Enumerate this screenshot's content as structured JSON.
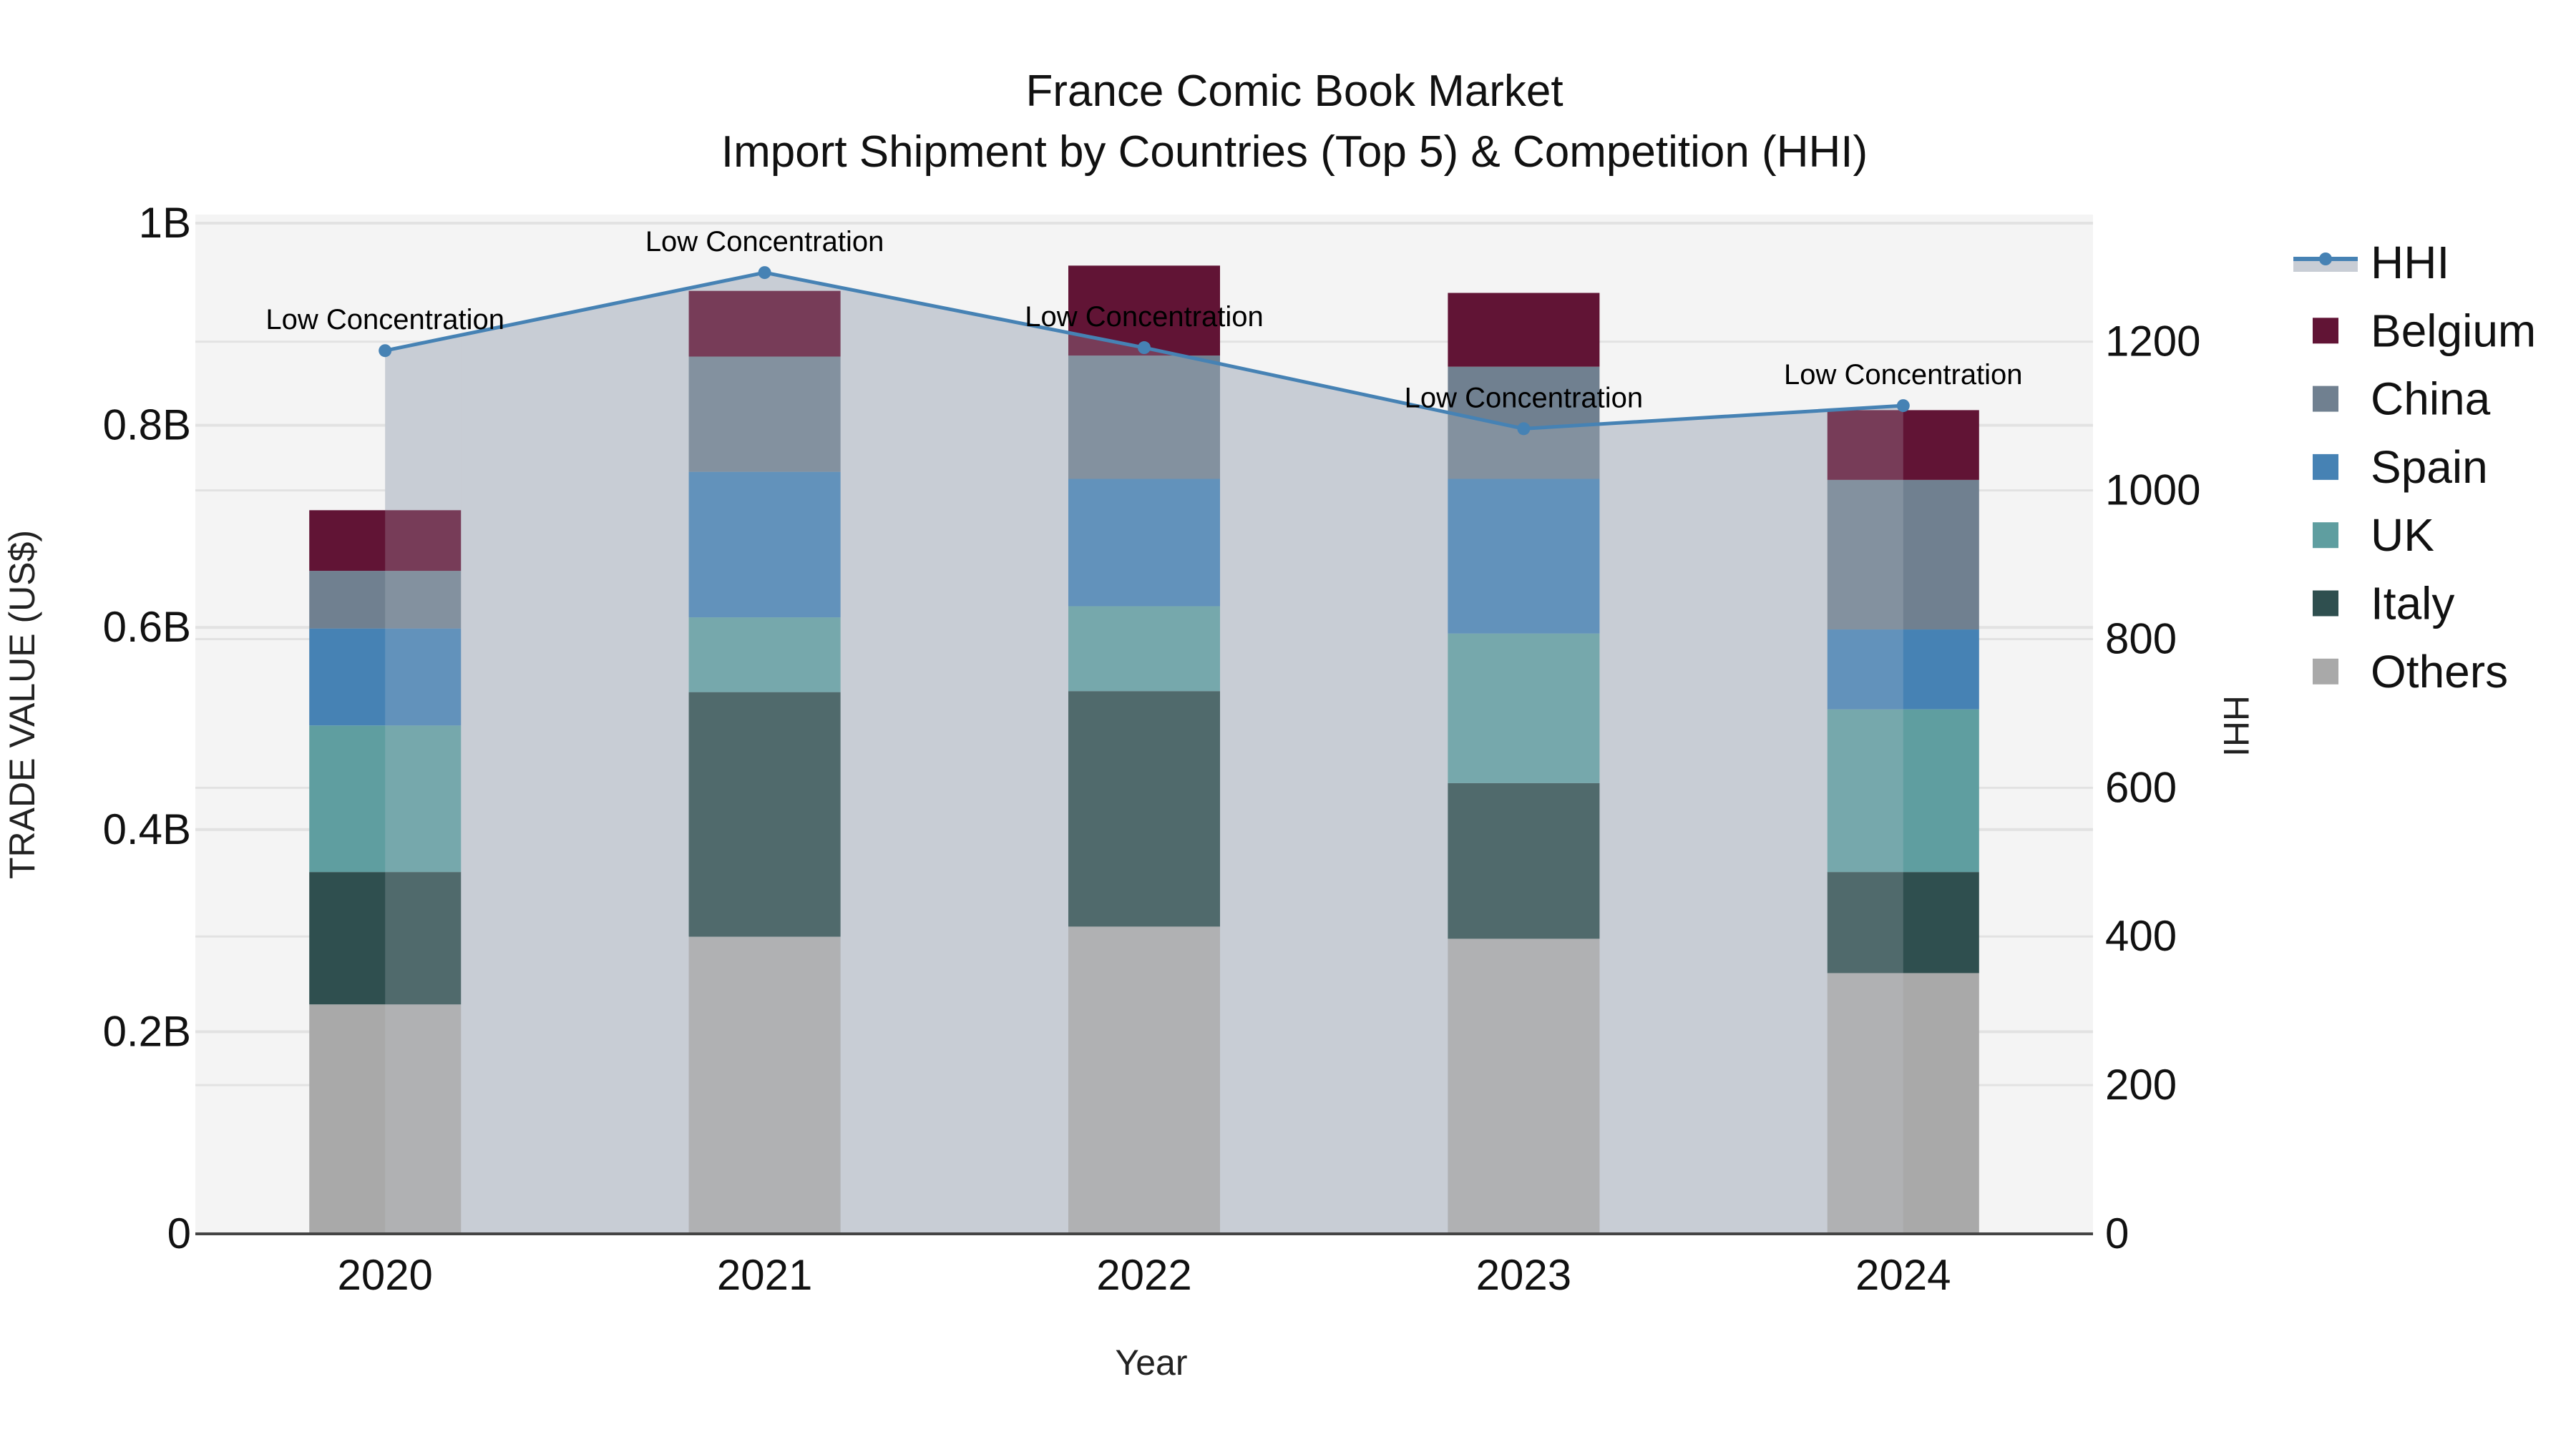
{
  "chart_data": {
    "type": "bar",
    "subtype": "stacked-bar-with-line-area-secondary-axis",
    "title": "France Comic Book Market",
    "subtitle": "Import Shipment by Countries (Top 5) & Competition (HHI)",
    "xlabel": "Year",
    "ylabel": "TRADE VALUE (US$)",
    "y2label": "HHI",
    "categories": [
      "2020",
      "2021",
      "2022",
      "2023",
      "2024"
    ],
    "ylim": [
      0,
      1.0085
    ],
    "y_unit": "B",
    "y_ticks": [
      0,
      0.2,
      0.4,
      0.6,
      0.8,
      1.0
    ],
    "y_tick_labels": [
      "0",
      "0.2B",
      "0.4B",
      "0.6B",
      "0.8B",
      "1B"
    ],
    "y2lim": [
      0,
      1371
    ],
    "y2_ticks": [
      0,
      200,
      400,
      600,
      800,
      1000,
      1200
    ],
    "y2_tick_labels": [
      "0",
      "200",
      "400",
      "600",
      "800",
      "1000",
      "1200"
    ],
    "grid": true,
    "legend_position": "right",
    "stack_order_bottom_to_top": [
      "Others",
      "Italy",
      "UK",
      "Spain",
      "China",
      "Belgium"
    ],
    "series": [
      {
        "name": "Belgium",
        "color": "#611435",
        "values": [
          0.06,
          0.065,
          0.089,
          0.073,
          0.069
        ]
      },
      {
        "name": "China",
        "color": "#708090",
        "values": [
          0.057,
          0.114,
          0.122,
          0.111,
          0.148
        ]
      },
      {
        "name": "Spain",
        "color": "#4682B4",
        "values": [
          0.096,
          0.144,
          0.126,
          0.153,
          0.079
        ]
      },
      {
        "name": "UK",
        "color": "#5F9EA0",
        "values": [
          0.145,
          0.074,
          0.084,
          0.148,
          0.161
        ]
      },
      {
        "name": "Italy",
        "color": "#2F4F4F",
        "values": [
          0.131,
          0.242,
          0.233,
          0.154,
          0.1
        ]
      },
      {
        "name": "Others",
        "color": "#A9A9A9",
        "values": [
          0.227,
          0.294,
          0.304,
          0.292,
          0.258
        ]
      }
    ],
    "totals": [
      0.716,
      0.934,
      0.958,
      0.931,
      0.815
    ],
    "line_series": {
      "name": "HHI",
      "axis": "right",
      "color": "#4682B4",
      "fill_color": "rgba(176,186,200,0.65)",
      "values": [
        1188,
        1293,
        1192,
        1083,
        1114
      ],
      "annotations": [
        "Low Concentration",
        "Low Concentration",
        "Low Concentration",
        "Low Concentration",
        "Low Concentration"
      ]
    }
  },
  "legend": {
    "items": [
      {
        "label": "HHI",
        "kind": "line"
      },
      {
        "label": "Belgium",
        "kind": "box"
      },
      {
        "label": "China",
        "kind": "box"
      },
      {
        "label": "Spain",
        "kind": "box"
      },
      {
        "label": "UK",
        "kind": "box"
      },
      {
        "label": "Italy",
        "kind": "box"
      },
      {
        "label": "Others",
        "kind": "box"
      }
    ]
  },
  "colors": {
    "plot_bg": "#F4F4F4",
    "grid": "#E2E2E2",
    "axis_line": "#444444",
    "page_bg": "#FFFFFF"
  }
}
